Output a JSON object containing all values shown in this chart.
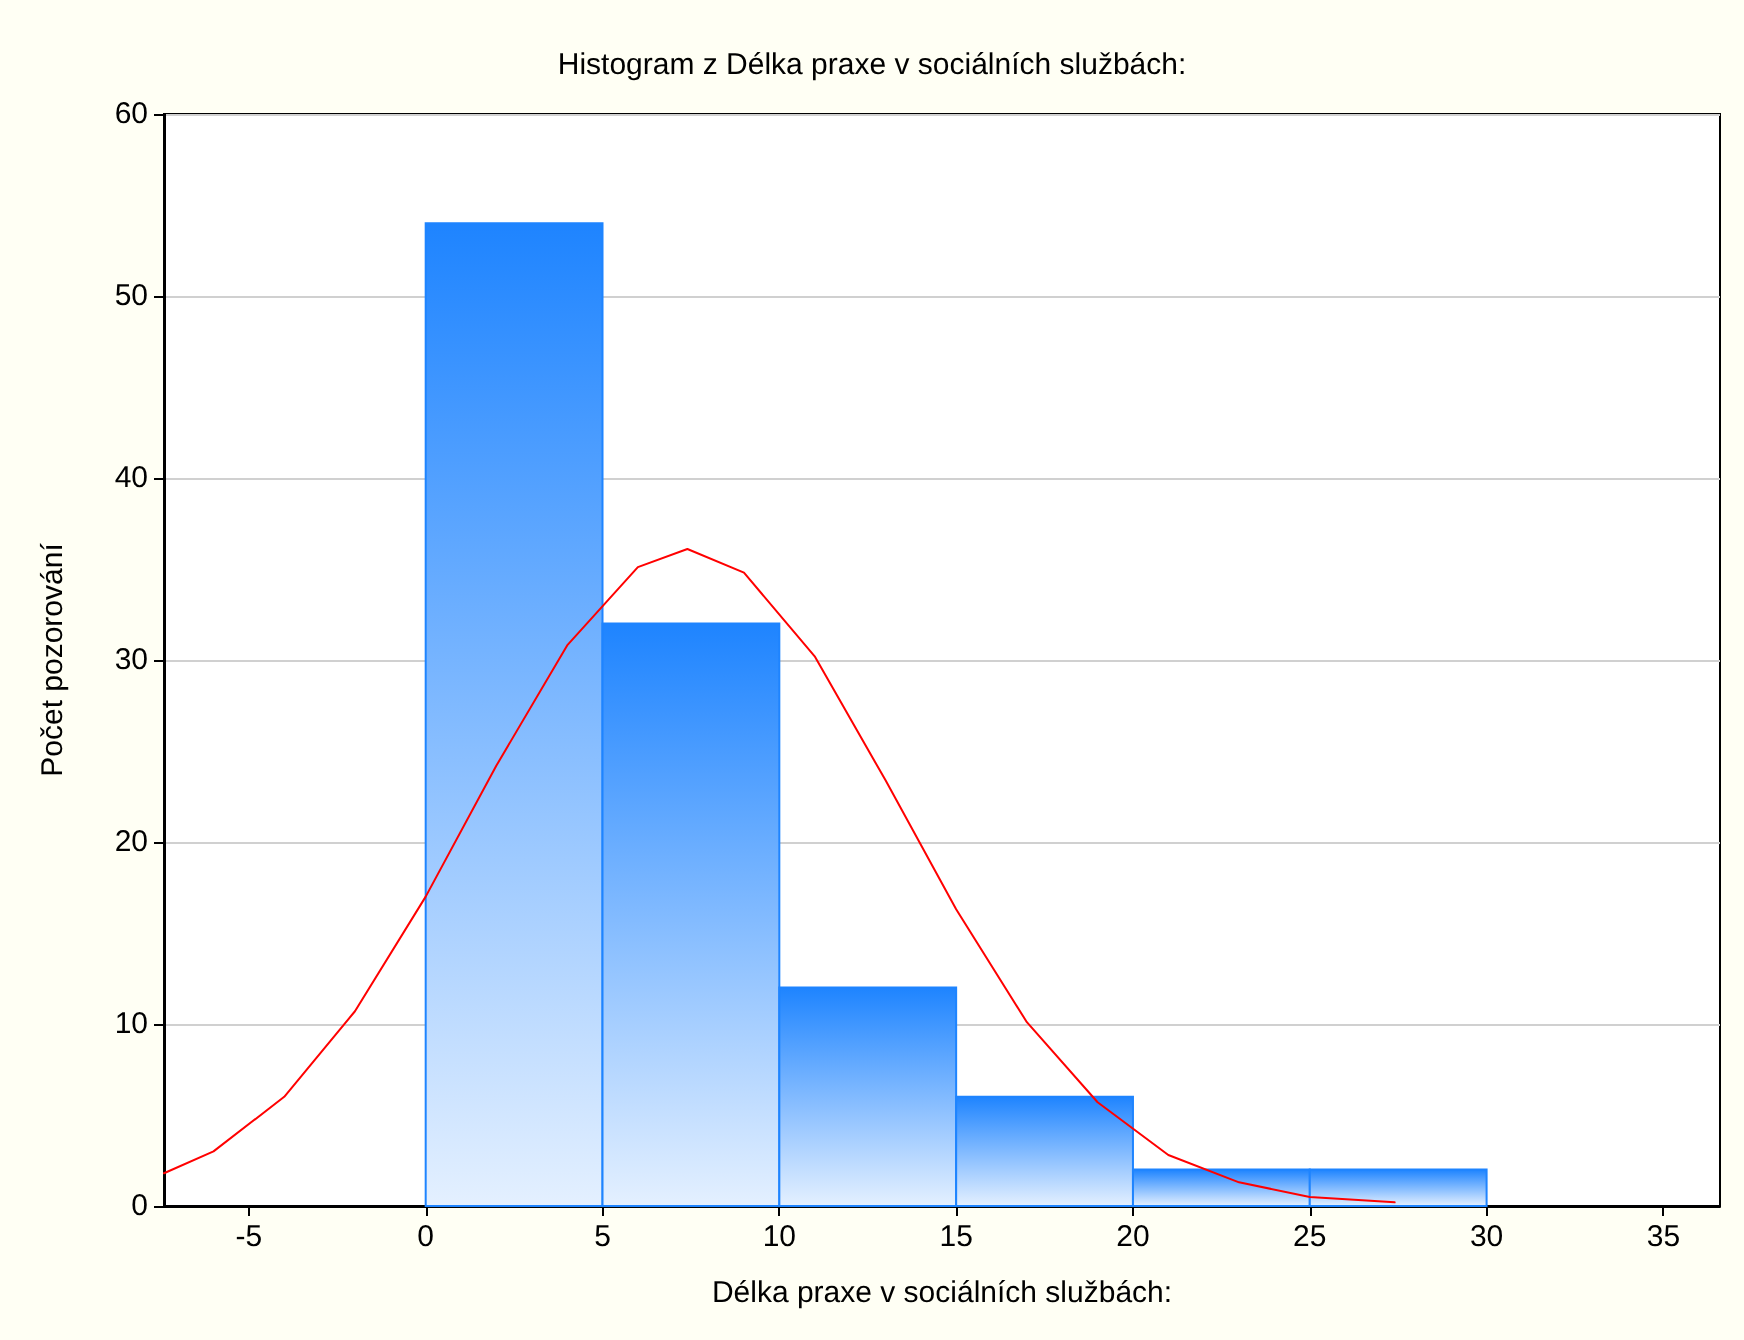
{
  "chart_data": {
    "type": "histogram",
    "title": "Histogram z Délka praxe v sociálních službách:",
    "xlabel": "Délka praxe v sociálních službách:",
    "ylabel": "Počet pozorování",
    "bins": [
      0,
      5,
      10,
      15,
      20,
      25,
      30
    ],
    "values": [
      54,
      32,
      12,
      6,
      2,
      2
    ],
    "color": "#1e84ff",
    "series": [
      {
        "type": "line",
        "color": "#ff0000",
        "x": [
          -7.4,
          -6,
          -4,
          -2,
          0,
          2,
          4,
          6,
          7.4,
          9,
          11,
          13,
          15,
          17,
          19,
          21,
          23,
          25,
          27.4
        ],
        "values": [
          1.8,
          3.0,
          6.0,
          10.7,
          17.0,
          24.2,
          30.8,
          35.1,
          36.1,
          34.8,
          30.2,
          23.4,
          16.3,
          10.1,
          5.7,
          2.8,
          1.3,
          0.5,
          0.2
        ]
      }
    ],
    "xlim": [
      -7.4,
      36.6
    ],
    "xticks": [
      -5,
      0,
      5,
      10,
      15,
      20,
      25,
      30,
      35
    ],
    "ylim": [
      0,
      60
    ],
    "yticks": [
      0,
      10,
      20,
      30,
      40,
      50,
      60
    ],
    "grid": "y",
    "marker": "none",
    "line_style": "solid"
  }
}
